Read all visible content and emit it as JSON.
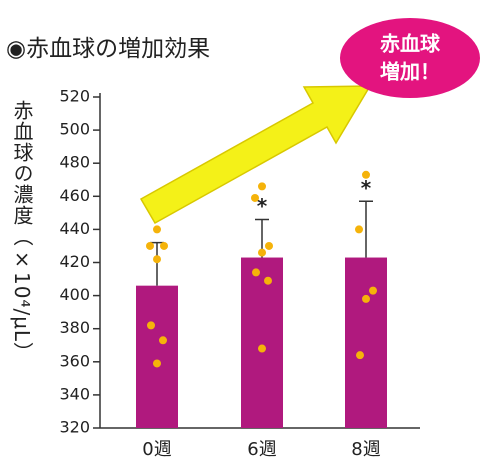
{
  "chart_data": {
    "type": "bar",
    "title": "◉赤血球の増加効果",
    "y_label": [
      "赤血球の濃度",
      "（×10⁴/μL）"
    ],
    "callout": [
      "赤血球",
      "増加！"
    ],
    "categories": [
      "0週",
      "6週",
      "8週"
    ],
    "values": [
      406,
      423,
      423
    ],
    "errors": [
      26,
      23,
      34
    ],
    "significance": [
      null,
      "*",
      "*"
    ],
    "points": [
      [
        440,
        430,
        430,
        422,
        382,
        373,
        359
      ],
      [
        466,
        459,
        430,
        426,
        414,
        409,
        368
      ],
      [
        473,
        440,
        403,
        398,
        364
      ]
    ],
    "color": "#b0197e",
    "point_color": "#f5b30a",
    "ylim": [
      320,
      520
    ],
    "yticks": [
      320,
      340,
      360,
      380,
      400,
      420,
      440,
      460,
      480,
      500,
      520
    ],
    "grid": false
  }
}
